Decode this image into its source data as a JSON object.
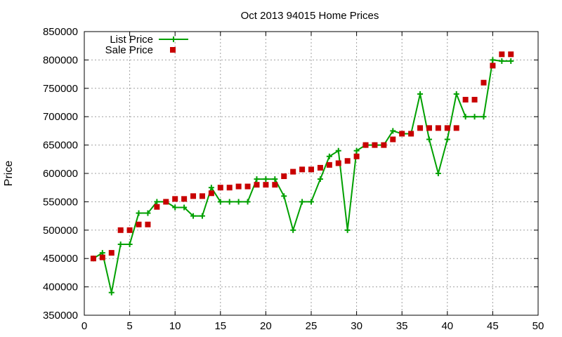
{
  "chart_data": {
    "type": "line",
    "title": "Oct 2013 94015 Home Prices",
    "xlabel": "",
    "ylabel": "Price",
    "xlim": [
      0,
      50
    ],
    "ylim": [
      350000,
      850000
    ],
    "x_ticks": [
      0,
      5,
      10,
      15,
      20,
      25,
      30,
      35,
      40,
      45,
      50
    ],
    "y_ticks": [
      350000,
      400000,
      450000,
      500000,
      550000,
      600000,
      650000,
      700000,
      750000,
      800000,
      850000
    ],
    "grid": true,
    "legend_position": "top-left",
    "series": [
      {
        "name": "List Price",
        "style": "linespoints",
        "color": "#00a000",
        "marker": "plus",
        "x": [
          1,
          2,
          3,
          4,
          5,
          6,
          7,
          8,
          9,
          10,
          11,
          12,
          13,
          14,
          15,
          16,
          17,
          18,
          19,
          20,
          21,
          22,
          23,
          24,
          25,
          26,
          27,
          28,
          29,
          30,
          31,
          32,
          33,
          34,
          35,
          36,
          37,
          38,
          39,
          40,
          41,
          42,
          43,
          44,
          45,
          46,
          47
        ],
        "y": [
          450000,
          460000,
          390000,
          475000,
          475000,
          530000,
          530000,
          550000,
          550000,
          540000,
          540000,
          525000,
          525000,
          575000,
          550000,
          550000,
          550000,
          550000,
          590000,
          590000,
          590000,
          560000,
          500000,
          550000,
          550000,
          590000,
          630000,
          640000,
          500000,
          640000,
          650000,
          650000,
          650000,
          675000,
          670000,
          670000,
          740000,
          660000,
          600000,
          660000,
          740000,
          700000,
          700000,
          700000,
          800000,
          798000,
          798000
        ]
      },
      {
        "name": "Sale Price",
        "style": "points",
        "color": "#c80000",
        "marker": "square",
        "x": [
          1,
          2,
          3,
          4,
          5,
          6,
          7,
          8,
          9,
          10,
          11,
          12,
          13,
          14,
          15,
          16,
          17,
          18,
          19,
          20,
          21,
          22,
          23,
          24,
          25,
          26,
          27,
          28,
          29,
          30,
          31,
          32,
          33,
          34,
          35,
          36,
          37,
          38,
          39,
          40,
          41,
          42,
          43,
          44,
          45,
          46,
          47
        ],
        "y": [
          450000,
          452000,
          460000,
          500000,
          500000,
          510000,
          510000,
          541000,
          550000,
          555000,
          555000,
          560000,
          560000,
          565000,
          575000,
          575000,
          577000,
          577000,
          580000,
          580000,
          580000,
          595000,
          603000,
          607000,
          607000,
          610000,
          615000,
          618000,
          622000,
          630000,
          650000,
          650000,
          650000,
          660000,
          670000,
          670000,
          680000,
          680000,
          680000,
          680000,
          680000,
          730000,
          730000,
          760000,
          790000,
          810000,
          810000
        ]
      }
    ]
  }
}
